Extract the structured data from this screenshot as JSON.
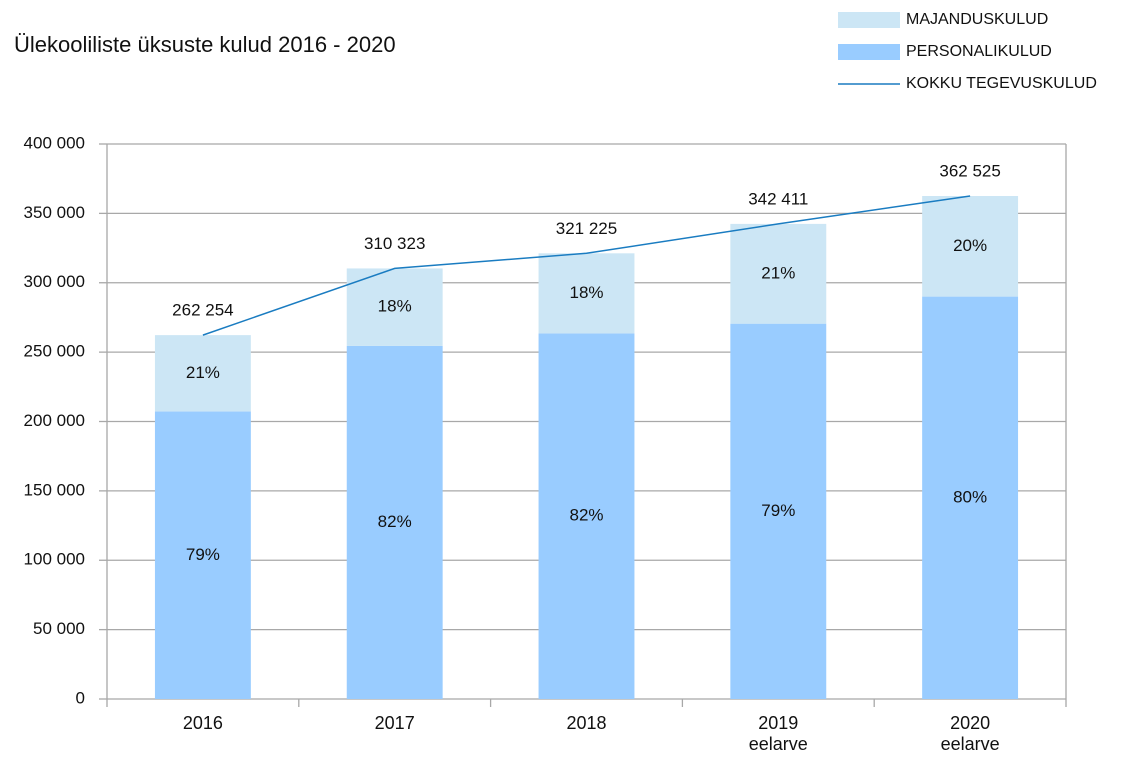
{
  "chart_data": {
    "type": "bar",
    "stacked": true,
    "title": "Ülekooliliste üksuste kulud 2016 - 2020",
    "categories": [
      "2016",
      "2017",
      "2018",
      "2019\neelarve",
      "2020\neelarve"
    ],
    "series": [
      {
        "name": "PERSONALIKULUD",
        "color": "#99ccff",
        "values": [
          207180,
          254465,
          263405,
          270505,
          290020
        ],
        "value_labels": [
          "79%",
          "82%",
          "82%",
          "79%",
          "80%"
        ]
      },
      {
        "name": "MAJANDUSKULUD",
        "color": "#cce6f5",
        "values": [
          55074,
          55858,
          57820,
          71906,
          72505
        ],
        "value_labels": [
          "21%",
          "18%",
          "18%",
          "21%",
          "20%"
        ]
      },
      {
        "name": "KOKKU TEGEVUSKULUD",
        "type": "line",
        "color": "#1a7cc1",
        "values": [
          262254,
          310323,
          321225,
          342411,
          362525
        ],
        "value_labels": [
          "262 254",
          "310 323",
          "321 225",
          "342 411",
          "362 525"
        ]
      }
    ],
    "ylim": [
      0,
      400000
    ],
    "yticks": [
      0,
      {
        "value": 50000,
        "label": "50 000"
      },
      {
        "value": 100000,
        "label": "100 000"
      },
      {
        "value": 150000,
        "label": "150 000"
      },
      {
        "value": 200000,
        "label": "200 000"
      },
      {
        "value": 250000,
        "label": "250 000"
      },
      {
        "value": 300000,
        "label": "300 000"
      },
      {
        "value": 350000,
        "label": "350 000"
      },
      {
        "value": 400000,
        "label": "400 000"
      }
    ],
    "grid": true,
    "legend": "top-right"
  }
}
